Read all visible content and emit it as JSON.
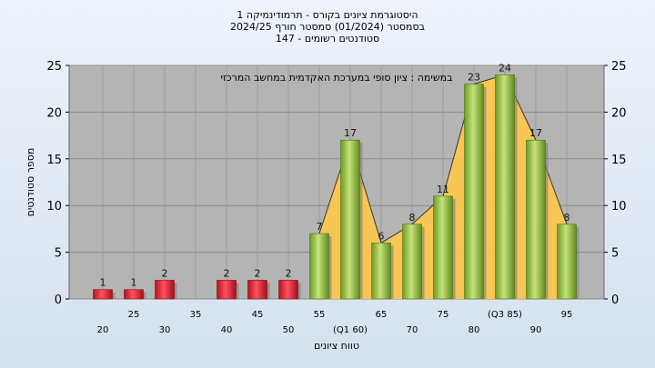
{
  "chart_data": {
    "type": "bar",
    "title_lines": [
      "היסטוגרמת ציונים בקורס - תרמודינמיקה 1",
      "בסמסטר  (01/2024)  סמסטר חורף 2024/25",
      "סטודנטים רשומים - 147"
    ],
    "annotation": "במשימה : ציון סופי במערכת האקדמית במחשב המרכזי",
    "xlabel": "טווח ציונים",
    "ylabel": "מספר סטודנטים",
    "ylim": [
      0,
      25
    ],
    "y_ticks": [
      0,
      5,
      10,
      15,
      20,
      25
    ],
    "grid": true,
    "x_tick_labels_top": [
      "25",
      "35",
      "45",
      "55",
      "65",
      "75",
      "(Q3 85)",
      "95"
    ],
    "x_tick_labels_bottom": [
      "20",
      "30",
      "40",
      "50",
      "(Q1 60)",
      "70",
      "80",
      "90"
    ],
    "categories": [
      "20",
      "25",
      "30",
      "35",
      "40",
      "45",
      "50",
      "55",
      "60",
      "65",
      "70",
      "75",
      "80",
      "85",
      "90",
      "95"
    ],
    "values": [
      1,
      1,
      2,
      0,
      2,
      2,
      2,
      7,
      17,
      6,
      8,
      11,
      23,
      24,
      17,
      8
    ],
    "bar_color_low": "#e02030",
    "bar_color_pass": "#8dbb3a",
    "pass_from": "55",
    "distribution_fill": "#ffc84a",
    "plot_background": "#b4b4b4"
  }
}
